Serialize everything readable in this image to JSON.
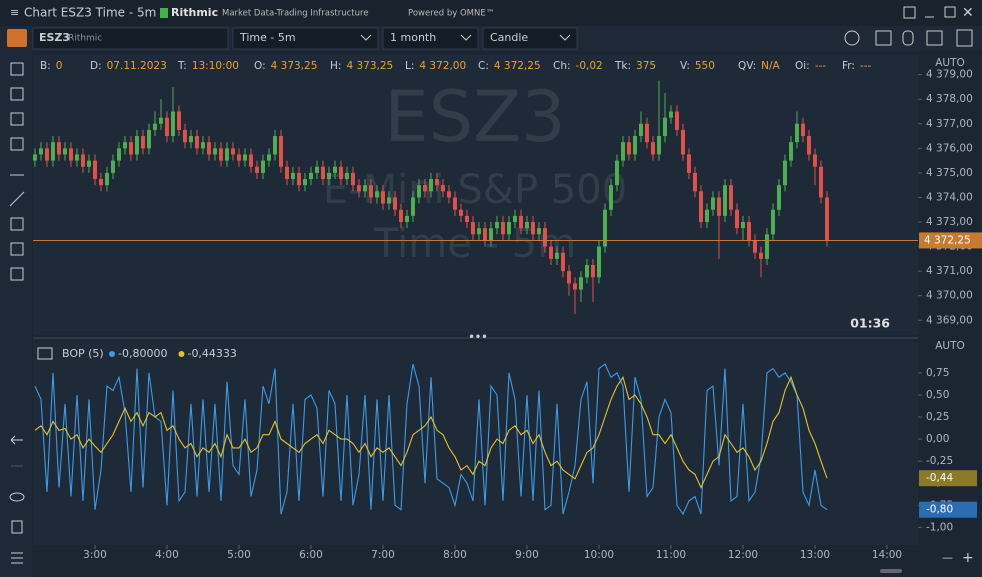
{
  "window": {
    "title": "Chart ESZ3 Time - 5m",
    "brand": "Rithmic",
    "brand_tagline": "Market Data-Trading Infrastructure",
    "powered": "Powered by OMNE™"
  },
  "toolbar": {
    "symbol": "ESZ3",
    "exchange": "Rithmic",
    "interval": "Time - 5m",
    "period": "1 month",
    "style": "Candle"
  },
  "info_bar": [
    {
      "label": "B:",
      "value": "0"
    },
    {
      "label": "D:",
      "value": "07.11.2023"
    },
    {
      "label": "T:",
      "value": "13:10:00"
    },
    {
      "label": "O:",
      "value": "4 373,25"
    },
    {
      "label": "H:",
      "value": "4 373,25"
    },
    {
      "label": "L:",
      "value": "4 372,00"
    },
    {
      "label": "C:",
      "value": "4 372,25"
    },
    {
      "label": "Ch:",
      "value": "-0,02"
    },
    {
      "label": "Tk:",
      "value": "375"
    },
    {
      "label": "V:",
      "value": "550"
    },
    {
      "label": "QV:",
      "value": "N/A"
    },
    {
      "label": "Oi:",
      "value": "---"
    },
    {
      "label": "Fr:",
      "value": "---"
    }
  ],
  "chart_data": [
    {
      "type": "candlestick",
      "scale_mode": "AUTO",
      "countdown": "01:36",
      "watermark": {
        "symbol": "ESZ3",
        "name": "E-Mini S&P 500",
        "interval": "Time - 5m"
      },
      "up_color": "#4caf50",
      "down_color": "#e2504c",
      "last_price": 4372.25,
      "last_price_label": "4 372,25",
      "last_price_color": "#c77a32",
      "xlim": [
        -0.33,
        147.17
      ],
      "ylim": [
        4368.4,
        4379.8
      ],
      "yticks": [
        {
          "value": 4369,
          "label": "4 369,00"
        },
        {
          "value": 4370,
          "label": "4 370,00"
        },
        {
          "value": 4371,
          "label": "4 371,00"
        },
        {
          "value": 4372,
          "label": "4 372,00"
        },
        {
          "value": 4373,
          "label": "4 373,00"
        },
        {
          "value": 4374,
          "label": "4 374,00"
        },
        {
          "value": 4375,
          "label": "4 375,00"
        },
        {
          "value": 4376,
          "label": "4 376,00"
        },
        {
          "value": 4377,
          "label": "4 377,00"
        },
        {
          "value": 4378,
          "label": "4 378,00"
        },
        {
          "value": 4379,
          "label": "4 379,00"
        }
      ],
      "open": [
        4375.5,
        4375.75,
        4376,
        4375.5,
        4376.25,
        4375.75,
        4376,
        4375.5,
        4375.75,
        4375.25,
        4375.5,
        4374.75,
        4374.5,
        4375,
        4375.5,
        4376,
        4376.25,
        4375.75,
        4376.5,
        4376,
        4376.75,
        4377,
        4377.25,
        4376.5,
        4377.5,
        4376.75,
        4376.25,
        4376.5,
        4376,
        4376.25,
        4375.75,
        4376,
        4375.5,
        4376,
        4375.75,
        4375.5,
        4375.75,
        4375.25,
        4375,
        4375.5,
        4375.75,
        4376.5,
        4375.25,
        4374.75,
        4375,
        4374.5,
        4374.75,
        4375,
        4375.25,
        4374.75,
        4375,
        4375.25,
        4374.75,
        4375,
        4374.5,
        4374.25,
        4374.5,
        4374,
        4374.25,
        4373.75,
        4374,
        4373.5,
        4373,
        4373.25,
        4374,
        4374.5,
        4374.25,
        4374.75,
        4374.5,
        4374.25,
        4374,
        4373.5,
        4373.25,
        4373,
        4372.5,
        4372.75,
        4372.25,
        4372.75,
        4373,
        4372.5,
        4373,
        4373.25,
        4372.75,
        4373,
        4372.5,
        4372.75,
        4372,
        4371.5,
        4371.75,
        4371,
        4370.5,
        4370.25,
        4370.75,
        4371.25,
        4370.75,
        4372,
        4373.5,
        4374.5,
        4375.5,
        4376.25,
        4375.75,
        4376.5,
        4377,
        4376.25,
        4375.75,
        4376.5,
        4377.25,
        4377.5,
        4376.75,
        4375.75,
        4375,
        4374.25,
        4373,
        4373.5,
        4374,
        4373.25,
        4374.5,
        4373.5,
        4372.75,
        4373,
        4372.25,
        4371.75,
        4371.5,
        4372.5,
        4373.5,
        4374.5,
        4375.5,
        4376.25,
        4377,
        4376.5,
        4375.75,
        4375.25,
        4374
      ],
      "high": [
        4376,
        4376.25,
        4376.25,
        4376.5,
        4376.5,
        4376.25,
        4376.25,
        4376,
        4376,
        4375.75,
        4375.75,
        4375,
        4375.25,
        4375.75,
        4376.25,
        4376.5,
        4376.5,
        4376.75,
        4376.75,
        4377,
        4377.5,
        4378,
        4377.5,
        4378.5,
        4377.75,
        4377,
        4376.75,
        4376.75,
        4376.5,
        4376.5,
        4376.25,
        4376.25,
        4376.25,
        4376.25,
        4376,
        4376,
        4376,
        4375.5,
        4375.75,
        4376,
        4376.75,
        4376.75,
        4375.5,
        4375.25,
        4375.25,
        4375,
        4375.25,
        4375.5,
        4375.5,
        4375.25,
        4375.5,
        4375.5,
        4375.25,
        4375.25,
        4374.75,
        4374.75,
        4374.75,
        4374.5,
        4374.5,
        4374.25,
        4374.25,
        4373.75,
        4373.5,
        4374.25,
        4374.75,
        4374.75,
        4375,
        4375,
        4374.75,
        4374.5,
        4374.25,
        4373.75,
        4373.5,
        4373.25,
        4373,
        4373,
        4373,
        4373.25,
        4373.25,
        4373.25,
        4373.5,
        4373.5,
        4373.25,
        4373.25,
        4373,
        4373,
        4372.25,
        4372,
        4372,
        4371.25,
        4370.75,
        4371,
        4371.5,
        4371.5,
        4372.25,
        4373.75,
        4374.75,
        4375.75,
        4376.5,
        4376.5,
        4376.75,
        4377.5,
        4377.25,
        4376.5,
        4378.75,
        4378.25,
        4377.75,
        4377.75,
        4377,
        4376,
        4375.25,
        4374.5,
        4373.75,
        4374.25,
        4374.25,
        4374.75,
        4374.75,
        4373.75,
        4373.25,
        4373.25,
        4372.5,
        4372,
        4372.75,
        4373.75,
        4374.75,
        4375.75,
        4376.5,
        4377.5,
        4377.25,
        4376.75,
        4376,
        4375.5,
        4374.25
      ],
      "low": [
        4375.25,
        4375.5,
        4375.25,
        4375.25,
        4375.5,
        4375.5,
        4375.25,
        4375.25,
        4375,
        4375,
        4374.5,
        4374.25,
        4374.25,
        4374.75,
        4375.25,
        4375.75,
        4375.5,
        4375.5,
        4375.75,
        4375.75,
        4376.5,
        4376.75,
        4376.25,
        4376.25,
        4376.5,
        4376,
        4376,
        4375.75,
        4375.75,
        4375.5,
        4375.5,
        4375.25,
        4375.25,
        4375.5,
        4375.25,
        4375.25,
        4375,
        4374.75,
        4374.75,
        4375.25,
        4375.5,
        4375,
        4374.5,
        4374.5,
        4374.25,
        4374.25,
        4374.5,
        4374.75,
        4374.5,
        4374.5,
        4374.75,
        4374.5,
        4374.5,
        4374.25,
        4374,
        4374,
        4373.75,
        4373.75,
        4373.5,
        4373.5,
        4373.25,
        4372.75,
        4372.75,
        4373,
        4373.75,
        4374,
        4374,
        4374.25,
        4374,
        4373.75,
        4373.25,
        4373,
        4372.75,
        4372.25,
        4372.25,
        4372,
        4372,
        4372.5,
        4372.25,
        4372.25,
        4372.75,
        4372.5,
        4372.5,
        4372.25,
        4372.25,
        4371.75,
        4371.25,
        4371.25,
        4370.75,
        4370,
        4369.25,
        4369.75,
        4370.5,
        4369.75,
        4370.5,
        4371.75,
        4373.25,
        4374.25,
        4375.25,
        4375.5,
        4375.5,
        4376.25,
        4376,
        4375.5,
        4375.5,
        4376.25,
        4377,
        4376.5,
        4375.5,
        4374.75,
        4374,
        4372.75,
        4372.75,
        4373.25,
        4371.5,
        4373,
        4373.25,
        4372.5,
        4372.25,
        4372,
        4371.5,
        4370.75,
        4371.25,
        4372.25,
        4373.25,
        4374.25,
        4375.25,
        4376,
        4376.25,
        4375.5,
        4374.5,
        4373.75,
        4372
      ],
      "close": [
        4375.75,
        4376,
        4375.5,
        4376.25,
        4375.75,
        4376,
        4375.5,
        4375.75,
        4375.25,
        4375.5,
        4374.75,
        4374.5,
        4375,
        4375.5,
        4376,
        4376.25,
        4375.75,
        4376.5,
        4376,
        4376.75,
        4377,
        4377.25,
        4376.5,
        4377.5,
        4376.75,
        4376.25,
        4376.5,
        4376,
        4376.25,
        4375.75,
        4376,
        4375.5,
        4376,
        4375.75,
        4375.5,
        4375.75,
        4375.25,
        4375,
        4375.5,
        4375.75,
        4376.5,
        4375.25,
        4374.75,
        4375,
        4374.5,
        4374.75,
        4375,
        4375.25,
        4374.75,
        4375,
        4375.25,
        4374.75,
        4375,
        4374.5,
        4374.25,
        4374.5,
        4374,
        4374.25,
        4373.75,
        4374,
        4373.5,
        4373,
        4373.25,
        4374,
        4374.5,
        4374.25,
        4374.75,
        4374.5,
        4374.25,
        4374,
        4373.5,
        4373.25,
        4373,
        4372.5,
        4372.75,
        4372.25,
        4372.75,
        4373,
        4372.5,
        4373,
        4373.25,
        4372.75,
        4373,
        4372.5,
        4372.75,
        4372,
        4371.5,
        4371.75,
        4371,
        4370.5,
        4370.25,
        4370.75,
        4371.25,
        4370.75,
        4372,
        4373.5,
        4374.5,
        4375.5,
        4376.25,
        4375.75,
        4376.5,
        4377,
        4376.25,
        4375.75,
        4376.5,
        4377.25,
        4377.5,
        4376.75,
        4375.75,
        4375,
        4374.25,
        4373,
        4373.5,
        4374,
        4373.25,
        4374.5,
        4373.5,
        4372.75,
        4373,
        4372.25,
        4371.75,
        4371.5,
        4372.5,
        4373.5,
        4374.5,
        4375.5,
        4376.25,
        4377,
        4376.5,
        4375.75,
        4375.25,
        4374,
        4372.25
      ]
    },
    {
      "type": "line",
      "title": "BOP (5)",
      "scale_mode": "AUTO",
      "xlim": [
        -0.33,
        147.17
      ],
      "ylim": [
        -1.2,
        1.1
      ],
      "xticks": [
        {
          "value": 10,
          "label": "3:00"
        },
        {
          "value": 22,
          "label": "4:00"
        },
        {
          "value": 34,
          "label": "5:00"
        },
        {
          "value": 46,
          "label": "6:00"
        },
        {
          "value": 58,
          "label": "7:00"
        },
        {
          "value": 70,
          "label": "8:00"
        },
        {
          "value": 82,
          "label": "9:00"
        },
        {
          "value": 94,
          "label": "10:00"
        },
        {
          "value": 106,
          "label": "11:00"
        },
        {
          "value": 118,
          "label": "12:00"
        },
        {
          "value": 130,
          "label": "13:00"
        },
        {
          "value": 142,
          "label": "14:00"
        }
      ],
      "yticks": [
        {
          "value": 0.75,
          "label": "0,75"
        },
        {
          "value": 0.5,
          "label": "0,50"
        },
        {
          "value": 0.25,
          "label": "0,25"
        },
        {
          "value": 0,
          "label": "0,00"
        },
        {
          "value": -0.25,
          "label": "-0,25"
        },
        {
          "value": -0.5,
          "label": "-0,50"
        },
        {
          "value": -0.75,
          "label": "-0,75"
        },
        {
          "value": -1,
          "label": "-1,00"
        }
      ],
      "series": [
        {
          "color": "#3d9be9",
          "legend_value": "-0,80000",
          "last_label": "-0,80",
          "label_bg": "#2a6db0",
          "values": [
            0.6,
            0.45,
            -0.6,
            0.75,
            -0.55,
            0.4,
            -0.65,
            0.5,
            -0.7,
            0.45,
            -0.8,
            -0.35,
            0.6,
            0.55,
            0.7,
            0.3,
            -0.6,
            0.8,
            -0.55,
            0.75,
            0.25,
            0.2,
            -0.75,
            0.55,
            -0.7,
            -0.6,
            0.4,
            -0.65,
            0.45,
            -0.6,
            0.4,
            -0.7,
            0.65,
            -0.3,
            -0.4,
            0.45,
            -0.65,
            -0.35,
            0.6,
            0.4,
            0.8,
            -0.85,
            -0.6,
            0.4,
            -0.7,
            0.45,
            0.5,
            0.35,
            -0.65,
            0.55,
            0.4,
            -0.7,
            0.5,
            -0.75,
            -0.4,
            0.5,
            -0.8,
            0.45,
            -0.7,
            0.5,
            -0.75,
            -0.8,
            0.4,
            0.85,
            0.6,
            -0.5,
            0.7,
            -0.45,
            -0.5,
            -0.55,
            -0.75,
            -0.4,
            -0.5,
            -0.7,
            0.45,
            -0.75,
            0.6,
            0.5,
            -0.7,
            0.75,
            0.45,
            -0.65,
            0.5,
            -0.7,
            0.55,
            -0.8,
            -0.75,
            0.4,
            -0.85,
            -0.6,
            -0.3,
            0.45,
            0.65,
            -0.5,
            0.8,
            0.85,
            0.7,
            0.75,
            0.6,
            -0.6,
            0.7,
            0.45,
            -0.65,
            -0.55,
            0.25,
            0.45,
            0.3,
            -0.75,
            -0.85,
            -0.7,
            -0.65,
            -0.85,
            0.55,
            0.6,
            -0.3,
            0.8,
            -0.7,
            -0.65,
            0.4,
            -0.7,
            -0.6,
            -0.2,
            0.75,
            0.8,
            0.7,
            0.75,
            0.65,
            0.5,
            -0.6,
            -0.75,
            -0.35,
            -0.75,
            -0.8
          ]
        },
        {
          "color": "#e6c229",
          "legend_value": "-0,44333",
          "last_label": "-0,44",
          "label_bg": "#8a7a2a",
          "values": [
            0.1,
            0.15,
            0.05,
            0.2,
            0.1,
            0.12,
            0.0,
            0.05,
            -0.1,
            0.0,
            -0.08,
            -0.15,
            -0.05,
            0.05,
            0.2,
            0.35,
            0.2,
            0.3,
            0.15,
            0.3,
            0.25,
            0.3,
            0.1,
            0.15,
            0.0,
            -0.1,
            -0.05,
            -0.2,
            -0.1,
            -0.15,
            -0.05,
            -0.2,
            0.05,
            -0.1,
            -0.1,
            0.0,
            -0.15,
            -0.1,
            0.05,
            0.05,
            0.2,
            0.0,
            -0.05,
            -0.1,
            -0.15,
            -0.05,
            0.0,
            0.05,
            -0.05,
            0.1,
            0.05,
            0.0,
            0.0,
            -0.05,
            -0.15,
            -0.05,
            -0.2,
            -0.1,
            -0.15,
            -0.1,
            -0.2,
            -0.3,
            -0.15,
            0.05,
            0.1,
            0.15,
            0.25,
            0.1,
            0.05,
            -0.1,
            -0.2,
            -0.35,
            -0.3,
            -0.4,
            -0.25,
            -0.3,
            -0.1,
            0.0,
            -0.05,
            0.1,
            0.15,
            0.05,
            0.1,
            -0.05,
            0.05,
            -0.15,
            -0.3,
            -0.25,
            -0.35,
            -0.4,
            -0.45,
            -0.3,
            -0.15,
            -0.1,
            0.05,
            0.25,
            0.45,
            0.6,
            0.7,
            0.45,
            0.5,
            0.4,
            0.25,
            0.05,
            0.05,
            -0.05,
            0.05,
            -0.1,
            -0.25,
            -0.35,
            -0.4,
            -0.55,
            -0.4,
            -0.25,
            -0.2,
            0.05,
            -0.05,
            -0.15,
            -0.1,
            -0.2,
            -0.35,
            -0.25,
            -0.05,
            0.2,
            0.3,
            0.55,
            0.7,
            0.5,
            0.35,
            0.1,
            -0.05,
            -0.25,
            -0.44333
          ]
        }
      ]
    }
  ]
}
